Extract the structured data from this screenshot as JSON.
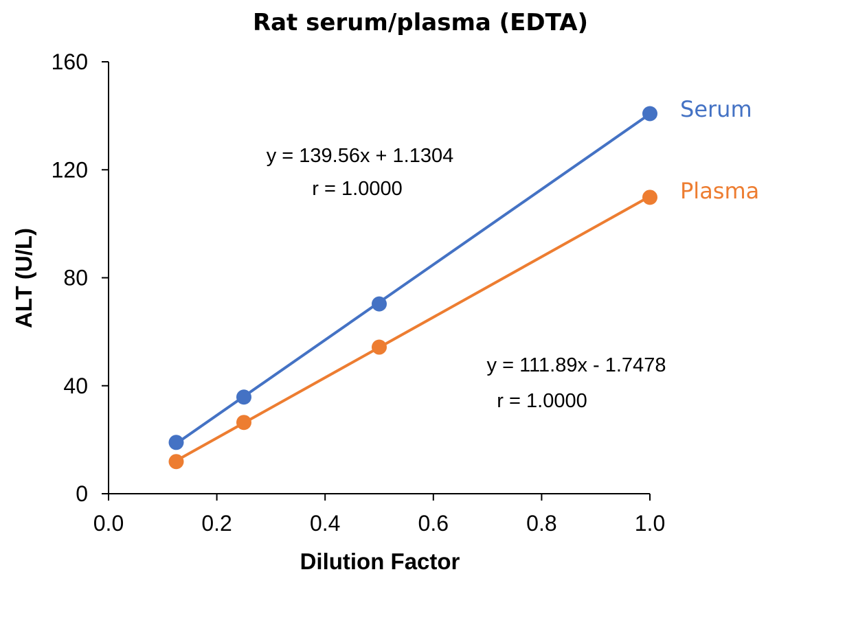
{
  "chart_data": {
    "type": "scatter",
    "title": "Rat serum/plasma (EDTA)",
    "xlabel": "Dilution Factor",
    "ylabel": "ALT (U/L)",
    "xlim": [
      0,
      1
    ],
    "ylim": [
      0,
      160
    ],
    "x_ticks": [
      "0.0",
      "0.2",
      "0.4",
      "0.6",
      "0.8",
      "1.0"
    ],
    "y_ticks": [
      "0",
      "40",
      "80",
      "120",
      "160"
    ],
    "grid": false,
    "series": [
      {
        "name": "Serum",
        "color": "#4472C4",
        "x": [
          0.125,
          0.25,
          0.5,
          1.0
        ],
        "y": [
          19,
          35.8,
          70.3,
          140.8
        ],
        "trendline": {
          "slope": 139.56,
          "intercept": 1.1304
        },
        "equation": "y = 139.56x + 1.1304",
        "r": "r = 1.0000"
      },
      {
        "name": "Plasma",
        "color": "#ED7D31",
        "x": [
          0.125,
          0.25,
          0.5,
          1.0
        ],
        "y": [
          11.9,
          26.4,
          54.3,
          109.8
        ],
        "trendline": {
          "slope": 111.89,
          "intercept": -1.7478
        },
        "equation": "y = 111.89x - 1.7478",
        "r": "r = 1.0000"
      }
    ]
  }
}
